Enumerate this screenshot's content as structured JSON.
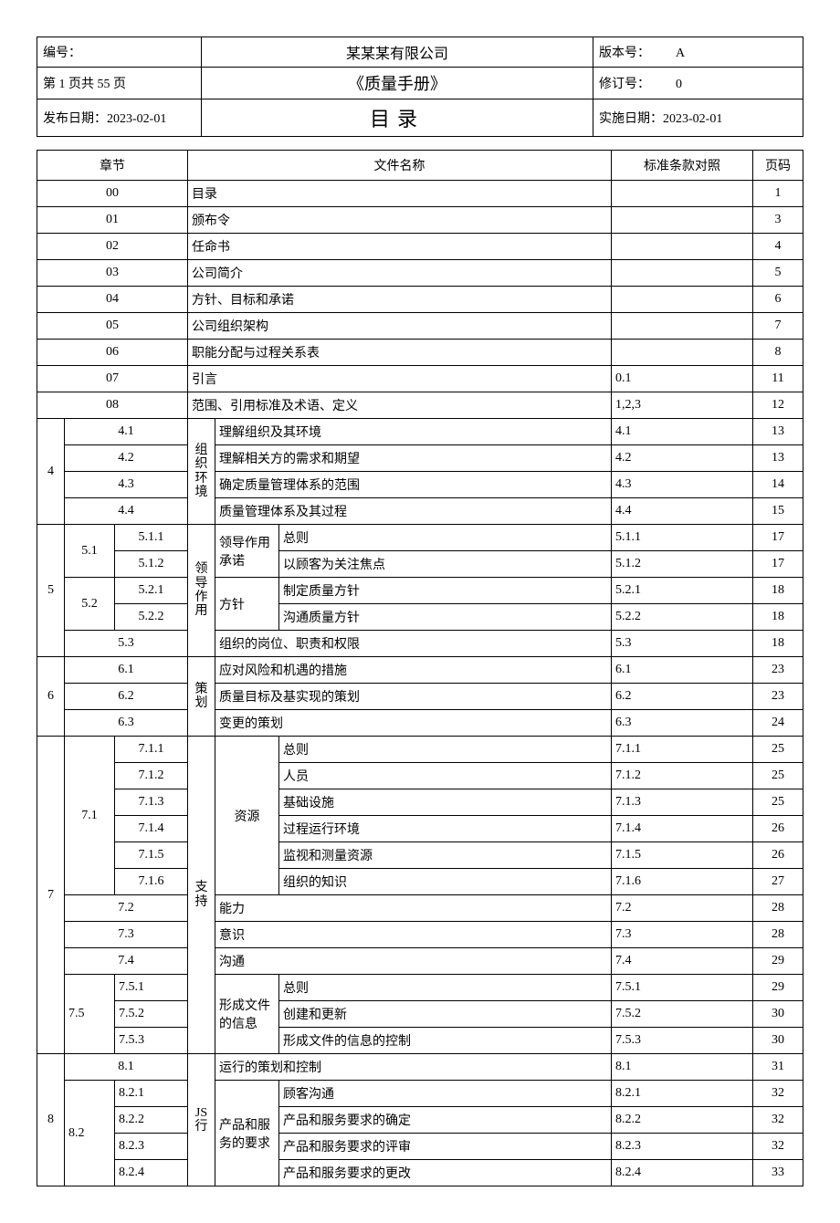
{
  "header": {
    "row1_left": "编号：",
    "row1_mid": "某某某有限公司",
    "row1_right_label": "版本号：",
    "row1_right_val": "A",
    "row2_left": "第 1 页共 55 页",
    "row2_mid": "《质量手册》",
    "row2_right_label": "修订号：",
    "row2_right_val": "0",
    "row3_left": "发布日期：2023-02-01",
    "row3_mid": "目录",
    "row3_right": "实施日期：2023-02-01"
  },
  "cols": {
    "chapter": "章节",
    "name": "文件名称",
    "std": "标准条款对照",
    "page": "页码"
  },
  "rows_simple": [
    {
      "ch": "00",
      "name": "目录",
      "std": "",
      "pg": "1"
    },
    {
      "ch": "01",
      "name": "颁布令",
      "std": "",
      "pg": "3"
    },
    {
      "ch": "02",
      "name": "任命书",
      "std": "",
      "pg": "4"
    },
    {
      "ch": "03",
      "name": "公司简介",
      "std": "",
      "pg": "5"
    },
    {
      "ch": "04",
      "name": "方针、目标和承诺",
      "std": "",
      "pg": "6"
    },
    {
      "ch": "05",
      "name": "公司组织架构",
      "std": "",
      "pg": "7"
    },
    {
      "ch": "06",
      "name": "职能分配与过程关系表",
      "std": "",
      "pg": "8"
    },
    {
      "ch": "07",
      "name": "引言",
      "std": "0.1",
      "pg": "11"
    },
    {
      "ch": "08",
      "name": "范围、引用标准及术语、定义",
      "std": "1,2,3",
      "pg": "12"
    }
  ],
  "sec4": {
    "chap": "4",
    "group": "组织环境",
    "rows": [
      {
        "sub": "4.1",
        "name": "理解组织及其环境",
        "std": "4.1",
        "pg": "13"
      },
      {
        "sub": "4.2",
        "name": "理解相关方的需求和期望",
        "std": "4.2",
        "pg": "13"
      },
      {
        "sub": "4.3",
        "name": "确定质量管理体系的范围",
        "std": "4.3",
        "pg": "14"
      },
      {
        "sub": "4.4",
        "name": "质量管理体系及其过程",
        "std": "4.4",
        "pg": "15"
      }
    ]
  },
  "sec5": {
    "chap": "5",
    "group": "领导作用",
    "g51": {
      "sub": "5.1",
      "gname": "领导作用承诺",
      "rows": [
        {
          "sss": "5.1.1",
          "name": "总则",
          "std": "5.1.1",
          "pg": "17"
        },
        {
          "sss": "5.1.2",
          "name": "以顾客为关注焦点",
          "std": "5.1.2",
          "pg": "17"
        }
      ]
    },
    "g52": {
      "sub": "5.2",
      "gname": "方针",
      "rows": [
        {
          "sss": "5.2.1",
          "name": "制定质量方针",
          "std": "5.2.1",
          "pg": "18"
        },
        {
          "sss": "5.2.2",
          "name": "沟通质量方针",
          "std": "5.2.2",
          "pg": "18"
        }
      ]
    },
    "r53": {
      "sub": "5.3",
      "name": "组织的岗位、职责和权限",
      "std": "5.3",
      "pg": "18"
    }
  },
  "sec6": {
    "chap": "6",
    "group": "策划",
    "rows": [
      {
        "sub": "6.1",
        "name": "应对风险和机遇的措施",
        "std": "6.1",
        "pg": "23"
      },
      {
        "sub": "6.2",
        "name": "质量目标及基实现的策划",
        "std": "6.2",
        "pg": "23"
      },
      {
        "sub": "6.3",
        "name": "变更的策划",
        "std": "6.3",
        "pg": "24"
      }
    ]
  },
  "sec7": {
    "chap": "7",
    "group": "支持",
    "g71": {
      "sub": "7.1",
      "gname": "资源",
      "rows": [
        {
          "sss": "7.1.1",
          "name": "总则",
          "std": "7.1.1",
          "pg": "25"
        },
        {
          "sss": "7.1.2",
          "name": "人员",
          "std": "7.1.2",
          "pg": "25"
        },
        {
          "sss": "7.1.3",
          "name": "基础设施",
          "std": "7.1.3",
          "pg": "25"
        },
        {
          "sss": "7.1.4",
          "name": "过程运行环境",
          "std": "7.1.4",
          "pg": "26"
        },
        {
          "sss": "7.1.5",
          "name": "监视和测量资源",
          "std": "7.1.5",
          "pg": "26"
        },
        {
          "sss": "7.1.6",
          "name": "组织的知识",
          "std": "7.1.6",
          "pg": "27"
        }
      ]
    },
    "r72": {
      "sub": "7.2",
      "name": "能力",
      "std": "7.2",
      "pg": "28"
    },
    "r73": {
      "sub": "7.3",
      "name": "意识",
      "std": "7.3",
      "pg": "28"
    },
    "r74": {
      "sub": "7.4",
      "name": "沟通",
      "std": "7.4",
      "pg": "29"
    },
    "g75": {
      "sub": "7.5",
      "gname": "形成文件的信息",
      "rows": [
        {
          "sss": "7.5.1",
          "name": "总则",
          "std": "7.5.1",
          "pg": "29"
        },
        {
          "sss": "7.5.2",
          "name": "创建和更新",
          "std": "7.5.2",
          "pg": "30"
        },
        {
          "sss": "7.5.3",
          "name": "形成文件的信息的控制",
          "std": "7.5.3",
          "pg": "30"
        }
      ]
    }
  },
  "sec8": {
    "chap": "8",
    "group": "JS 行",
    "r81": {
      "sub": "8.1",
      "name": "运行的策划和控制",
      "std": "8.1",
      "pg": "31"
    },
    "g82": {
      "sub": "8.2",
      "gname": "产品和服务的要求",
      "rows": [
        {
          "sss": "8.2.1",
          "name": "顾客沟通",
          "std": "8.2.1",
          "pg": "32"
        },
        {
          "sss": "8.2.2",
          "name": "产品和服务要求的确定",
          "std": "8.2.2",
          "pg": "32"
        },
        {
          "sss": "8.2.3",
          "name": "产品和服务要求的评审",
          "std": "8.2.3",
          "pg": "32"
        },
        {
          "sss": "8.2.4",
          "name": "产品和服务要求的更改",
          "std": "8.2.4",
          "pg": "33"
        }
      ]
    }
  }
}
